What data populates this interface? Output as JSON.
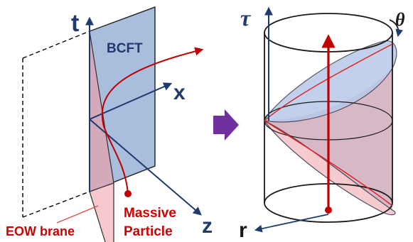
{
  "left_diagram": {
    "axis_t": "t",
    "axis_x": "x",
    "axis_z": "z",
    "region_bcft": "BCFT",
    "eow_brane_label": "EOW brane",
    "massive_particle_label_line1": "Massive",
    "massive_particle_label_line2": "Particle"
  },
  "right_diagram": {
    "axis_tau": "τ",
    "axis_theta": "θ",
    "axis_r": "r"
  },
  "colors": {
    "bcft_blue": "#a9bddc",
    "brane_pink": "#d7a8b8",
    "trajectory_red": "#c00000",
    "label_red": "#d00000",
    "axis_navy": "#1f3a6e",
    "arrow_purple": "#7030a0"
  },
  "icons": {
    "transform_arrow": "right-arrow-icon"
  }
}
